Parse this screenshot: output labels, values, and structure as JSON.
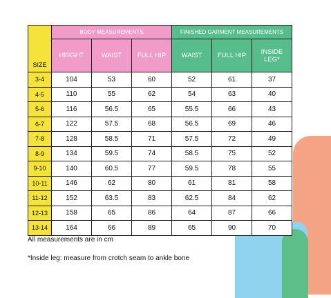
{
  "table": {
    "size_header": "SIZE",
    "group_body": "BODY MEASUREMENTS",
    "group_finished": "FINISHED GARMENT MEASUREMENTS",
    "body_columns": [
      "HEIGHT",
      "WAIST",
      "FULL HIP"
    ],
    "finished_columns": [
      "WAIST",
      "FULL HIP",
      "INSIDE LEG*"
    ],
    "rows": [
      {
        "size": "3-4",
        "values": [
          "104",
          "53",
          "60",
          "52",
          "61",
          "37"
        ]
      },
      {
        "size": "4-5",
        "values": [
          "110",
          "55",
          "62",
          "54",
          "63",
          "40"
        ]
      },
      {
        "size": "5-6",
        "values": [
          "116",
          "56.5",
          "65",
          "55.5",
          "66",
          "43"
        ]
      },
      {
        "size": "6-7",
        "values": [
          "122",
          "57.5",
          "68",
          "56.5",
          "69",
          "46"
        ]
      },
      {
        "size": "7-8",
        "values": [
          "128",
          "58.5",
          "71",
          "57.5",
          "72",
          "49"
        ]
      },
      {
        "size": "8-9",
        "values": [
          "134",
          "59.5",
          "74",
          "58.5",
          "75",
          "52"
        ]
      },
      {
        "size": "9-10",
        "values": [
          "140",
          "60.5",
          "77",
          "59.5",
          "78",
          "55"
        ]
      },
      {
        "size": "10-11",
        "values": [
          "146",
          "62",
          "80",
          "61",
          "81",
          "58"
        ]
      },
      {
        "size": "11-12",
        "values": [
          "152",
          "63.5",
          "83",
          "62.5",
          "84",
          "62"
        ]
      },
      {
        "size": "12-13",
        "values": [
          "158",
          "65",
          "86",
          "64",
          "87",
          "66"
        ]
      },
      {
        "size": "13-14",
        "values": [
          "164",
          "66",
          "89",
          "65",
          "90",
          "70"
        ]
      }
    ]
  },
  "notes": {
    "units": "All measurements are in cm",
    "inside_leg": "*Inside leg: measure from crotch seam to ankle bone"
  },
  "colors": {
    "size_yellow": "#f5e23a",
    "body_pink": "#f19cc8",
    "finished_green": "#57bd8c",
    "deco_blue": "#8fd3ee",
    "deco_orange": "#f4a384"
  }
}
